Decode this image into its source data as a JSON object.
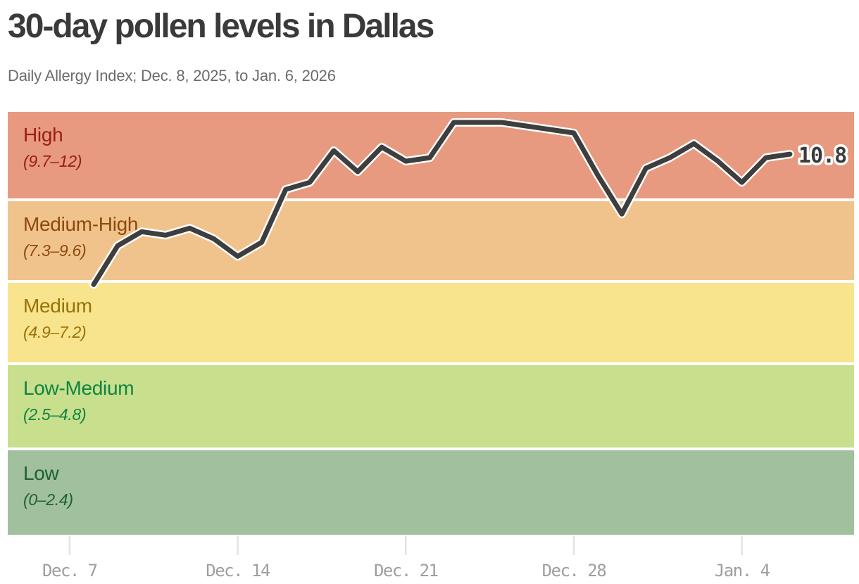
{
  "header": {
    "title": "30-day pollen levels in Dallas",
    "subtitle": "Daily Allergy Index; Dec. 8, 2025, to Jan. 6, 2026"
  },
  "chart_data": {
    "type": "line",
    "title": "30-day pollen levels in Dallas",
    "subtitle": "Daily Allergy Index; Dec. 8, 2025, to Jan. 6, 2026",
    "xlabel": "",
    "ylabel": "Daily Allergy Index",
    "ylim": [
      0,
      12
    ],
    "grid": false,
    "legend_position": "none (bands labeled inline)",
    "x": [
      "Dec. 8",
      "Dec. 9",
      "Dec. 10",
      "Dec. 11",
      "Dec. 12",
      "Dec. 13",
      "Dec. 14",
      "Dec. 15",
      "Dec. 16",
      "Dec. 17",
      "Dec. 18",
      "Dec. 19",
      "Dec. 20",
      "Dec. 21",
      "Dec. 22",
      "Dec. 23",
      "Dec. 24",
      "Dec. 25",
      "Dec. 26",
      "Dec. 27",
      "Dec. 28",
      "Dec. 29",
      "Dec. 30",
      "Dec. 31",
      "Jan. 1",
      "Jan. 2",
      "Jan. 3",
      "Jan. 4",
      "Jan. 5",
      "Jan. 6"
    ],
    "values": [
      7.1,
      8.2,
      8.6,
      8.5,
      8.7,
      8.4,
      7.9,
      8.3,
      9.8,
      10.0,
      10.9,
      10.3,
      11.0,
      10.6,
      10.7,
      11.7,
      11.7,
      11.7,
      11.6,
      11.5,
      11.4,
      10.2,
      9.1,
      10.4,
      10.7,
      11.1,
      10.6,
      10.0,
      10.7,
      10.8
    ],
    "end_label": "10.8",
    "line_color": "#3e3e3e",
    "line_halo_color": "#ffffff",
    "x_ticks": [
      {
        "label": "Dec. 7",
        "day_offset": -1
      },
      {
        "label": "Dec. 14",
        "day_offset": 6
      },
      {
        "label": "Dec. 21",
        "day_offset": 13
      },
      {
        "label": "Dec. 28",
        "day_offset": 20
      },
      {
        "label": "Jan. 4",
        "day_offset": 27
      }
    ],
    "bands": [
      {
        "label": "High",
        "range": "(9.7–12)",
        "value_range": [
          9.7,
          12
        ],
        "fill": "#e79a7f",
        "text_color": "#9b1d15"
      },
      {
        "label": "Medium-High",
        "range": "(7.3–9.6)",
        "value_range": [
          7.3,
          9.6
        ],
        "fill": "#f1c38c",
        "text_color": "#8c4a0f"
      },
      {
        "label": "Medium",
        "range": "(4.9–7.2)",
        "value_range": [
          4.9,
          7.2
        ],
        "fill": "#f8e48c",
        "text_color": "#97720a"
      },
      {
        "label": "Low-Medium",
        "range": "(2.5–4.8)",
        "value_range": [
          2.5,
          4.8
        ],
        "fill": "#c8df8e",
        "text_color": "#0e8440"
      },
      {
        "label": "Low",
        "range": "(0–2.4)",
        "value_range": [
          0,
          2.4
        ],
        "fill": "#a1c09d",
        "text_color": "#1e6134"
      }
    ],
    "axis_tick_color": "#e3e3e3",
    "axis_label_color": "#9e9e9e"
  }
}
